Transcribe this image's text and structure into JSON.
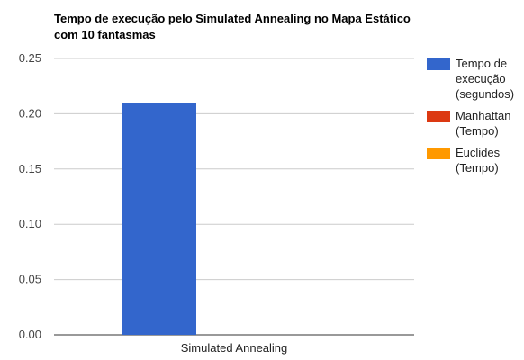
{
  "chart_data": {
    "type": "bar",
    "title_lines": [
      "Tempo de execução pelo Simulated Annealing no Mapa Estático",
      "com 10 fantasmas"
    ],
    "categories": [
      "Simulated Annealing"
    ],
    "series": [
      {
        "name": "Tempo de execução (segundos)",
        "name_lines": [
          "Tempo de",
          "execução",
          "(segundos)"
        ],
        "color": "#3366cc",
        "values": [
          0.21
        ]
      },
      {
        "name": "Manhattan (Tempo)",
        "name_lines": [
          "Manhattan",
          "(Tempo)"
        ],
        "color": "#dc3912",
        "values": [
          0
        ]
      },
      {
        "name": "Euclides (Tempo)",
        "name_lines": [
          "Euclides",
          "(Tempo)"
        ],
        "color": "#ff9900",
        "values": [
          0
        ]
      }
    ],
    "ylim": [
      0,
      0.25
    ],
    "yticks": [
      "0.00",
      "0.05",
      "0.10",
      "0.15",
      "0.20",
      "0.25"
    ],
    "grid": true,
    "legend_position": "right"
  }
}
